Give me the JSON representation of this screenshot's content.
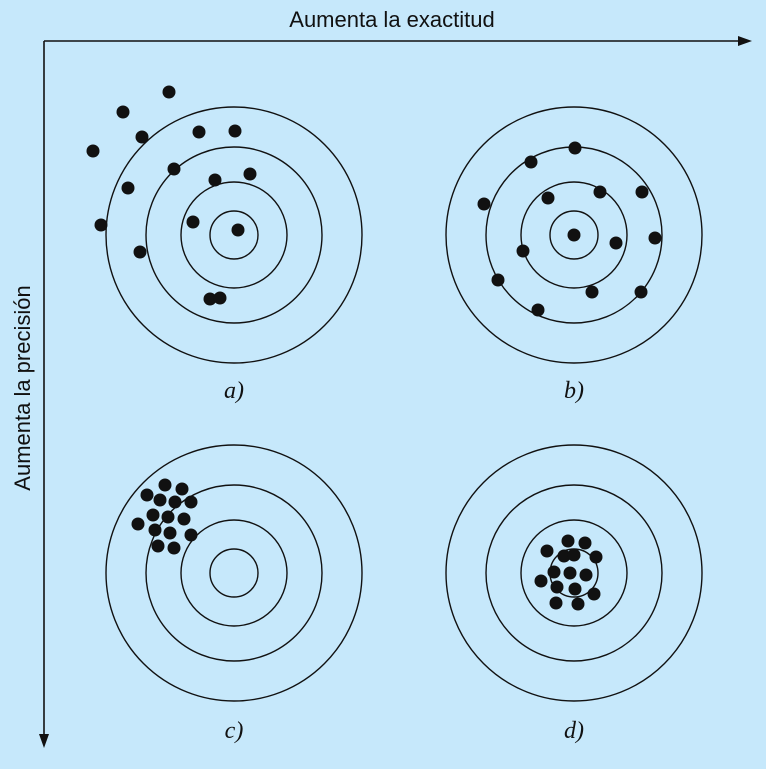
{
  "axes": {
    "x_label": "Aumenta la exactitud",
    "y_label": "Aumenta la precisión"
  },
  "panels": [
    {
      "label": "a)",
      "shots": [
        [
          93,
          151
        ],
        [
          123,
          112
        ],
        [
          169,
          92
        ],
        [
          142,
          137
        ],
        [
          199,
          132
        ],
        [
          235,
          131
        ],
        [
          128,
          188
        ],
        [
          174,
          169
        ],
        [
          215,
          180
        ],
        [
          250,
          174
        ],
        [
          101,
          225
        ],
        [
          140,
          252
        ],
        [
          193,
          222
        ],
        [
          238,
          230
        ],
        [
          210,
          299
        ],
        [
          220,
          298
        ]
      ]
    },
    {
      "label": "b)",
      "shots": [
        [
          575,
          148
        ],
        [
          531,
          162
        ],
        [
          484,
          204
        ],
        [
          548,
          198
        ],
        [
          600,
          192
        ],
        [
          642,
          192
        ],
        [
          523,
          251
        ],
        [
          574,
          235
        ],
        [
          616,
          243
        ],
        [
          655,
          238
        ],
        [
          498,
          280
        ],
        [
          538,
          310
        ],
        [
          592,
          292
        ],
        [
          641,
          292
        ]
      ]
    },
    {
      "label": "c)",
      "shots": [
        [
          147,
          495
        ],
        [
          165,
          485
        ],
        [
          182,
          489
        ],
        [
          160,
          500
        ],
        [
          175,
          502
        ],
        [
          191,
          502
        ],
        [
          153,
          515
        ],
        [
          168,
          517
        ],
        [
          184,
          519
        ],
        [
          138,
          524
        ],
        [
          155,
          530
        ],
        [
          170,
          533
        ],
        [
          191,
          535
        ],
        [
          158,
          546
        ],
        [
          174,
          548
        ]
      ]
    },
    {
      "label": "d)",
      "shots": [
        [
          568,
          541
        ],
        [
          585,
          543
        ],
        [
          547,
          551
        ],
        [
          564,
          556
        ],
        [
          574,
          555
        ],
        [
          596,
          557
        ],
        [
          554,
          572
        ],
        [
          570,
          573
        ],
        [
          586,
          575
        ],
        [
          541,
          581
        ],
        [
          557,
          587
        ],
        [
          575,
          589
        ],
        [
          594,
          594
        ],
        [
          556,
          603
        ],
        [
          578,
          604
        ]
      ]
    }
  ]
}
